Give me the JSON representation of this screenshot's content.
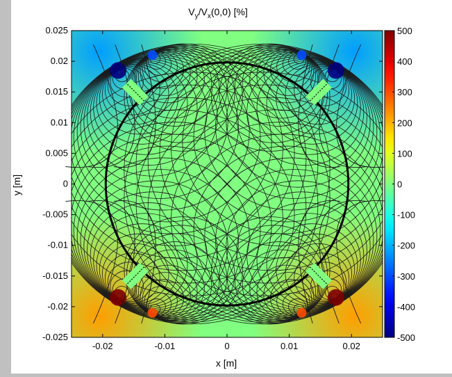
{
  "chart_data": {
    "type": "heatmap",
    "title_main": "V",
    "title_sub1": "y",
    "title_mid": "/V",
    "title_sub2": "x",
    "title_end": "(0,0) [%]",
    "xlabel": "x [m]",
    "ylabel": "y [m]",
    "xlim": [
      -0.025,
      0.025
    ],
    "ylim": [
      -0.025,
      0.025
    ],
    "clim": [
      -500,
      500
    ],
    "x_ticks": [
      {
        "v": -0.02,
        "label": "-0.02"
      },
      {
        "v": -0.01,
        "label": "-0.01"
      },
      {
        "v": 0,
        "label": "0"
      },
      {
        "v": 0.01,
        "label": "0.01"
      },
      {
        "v": 0.02,
        "label": "0.02"
      }
    ],
    "y_ticks": [
      {
        "v": 0.025,
        "label": "0.025"
      },
      {
        "v": 0.02,
        "label": "0.02"
      },
      {
        "v": 0.015,
        "label": "0.015"
      },
      {
        "v": 0.01,
        "label": "0.01"
      },
      {
        "v": 0.005,
        "label": "0.005"
      },
      {
        "v": 0,
        "label": "0"
      },
      {
        "v": -0.005,
        "label": "-0.005"
      },
      {
        "v": -0.01,
        "label": "-0.01"
      },
      {
        "v": -0.015,
        "label": "-0.015"
      },
      {
        "v": -0.02,
        "label": "-0.02"
      },
      {
        "v": -0.025,
        "label": "-0.025"
      }
    ],
    "colorbar_ticks": [
      {
        "v": 500,
        "label": "500"
      },
      {
        "v": 400,
        "label": "400"
      },
      {
        "v": 300,
        "label": "300"
      },
      {
        "v": 200,
        "label": "200"
      },
      {
        "v": 100,
        "label": "100"
      },
      {
        "v": 0,
        "label": "0"
      },
      {
        "v": -100,
        "label": "-100"
      },
      {
        "v": -200,
        "label": "-200"
      },
      {
        "v": -300,
        "label": "-300"
      },
      {
        "v": -400,
        "label": "-400"
      },
      {
        "v": -500,
        "label": "-500"
      }
    ],
    "colormap": "jet",
    "aperture_radius": 0.0195,
    "electrode_tips": [
      {
        "x": -0.0175,
        "y": 0.0185,
        "value": -500
      },
      {
        "x": -0.012,
        "y": 0.021,
        "value": -300
      },
      {
        "x": 0.0175,
        "y": 0.0185,
        "value": -500
      },
      {
        "x": 0.012,
        "y": 0.021,
        "value": -300
      },
      {
        "x": -0.0175,
        "y": -0.0185,
        "value": 500
      },
      {
        "x": -0.012,
        "y": -0.021,
        "value": 300
      },
      {
        "x": 0.0175,
        "y": -0.0185,
        "value": 500
      },
      {
        "x": 0.012,
        "y": -0.021,
        "value": 300
      }
    ],
    "grid": false
  }
}
